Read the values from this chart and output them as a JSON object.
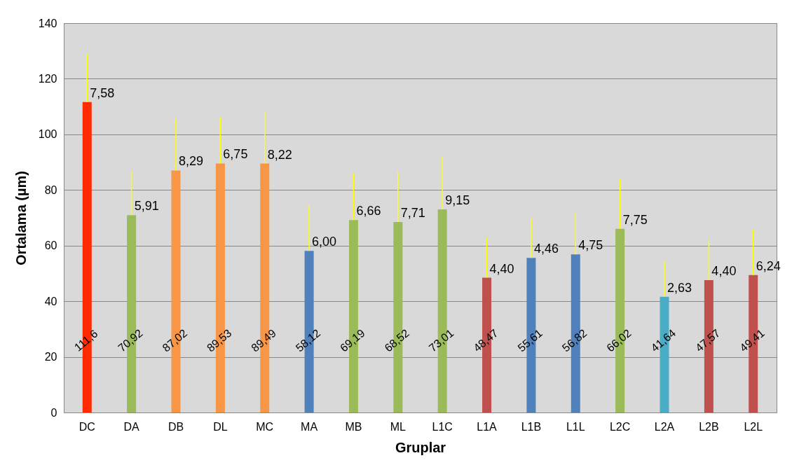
{
  "chart_data": {
    "type": "bar",
    "xlabel": "Gruplar",
    "ylabel": "Ortalama (µm)",
    "categories": [
      "DC",
      "DA",
      "DB",
      "DL",
      "MC",
      "MA",
      "MB",
      "ML",
      "L1C",
      "L1A",
      "L1B",
      "L1L",
      "L2C",
      "L2A",
      "L2B",
      "L2L"
    ],
    "values": [
      111.6,
      70.92,
      87.02,
      89.53,
      89.49,
      58.12,
      69.19,
      68.52,
      73.01,
      48.47,
      55.61,
      56.82,
      66.02,
      41.64,
      47.57,
      49.41
    ],
    "colors": [
      "#ff2a00",
      "#9bbb59",
      "#f79646",
      "#f79646",
      "#f79646",
      "#4f81bd",
      "#9bbb59",
      "#9bbb59",
      "#9bbb59",
      "#c0504d",
      "#4f81bd",
      "#4f81bd",
      "#9bbb59",
      "#4bacc6",
      "#c0504d",
      "#c0504d"
    ],
    "value_labels": [
      "111,6",
      "70,92",
      "87,02",
      "89,53",
      "89,49",
      "58,12",
      "69,19",
      "68,52",
      "73,01",
      "48,47",
      "55,61",
      "56,82",
      "66,02",
      "41,64",
      "47,57",
      "49,41"
    ],
    "errors": [
      [
        111.6,
        129
      ],
      [
        70.92,
        87
      ],
      [
        87.02,
        105.5
      ],
      [
        89.53,
        106
      ],
      [
        89.49,
        108
      ],
      [
        58.12,
        74.5
      ],
      [
        69.19,
        86
      ],
      [
        68.52,
        86.5
      ],
      [
        73.01,
        92
      ],
      [
        48.47,
        63
      ],
      [
        55.61,
        70
      ],
      [
        56.82,
        72
      ],
      [
        66.02,
        84
      ],
      [
        41.64,
        54.5
      ],
      [
        47.57,
        62
      ],
      [
        49.41,
        66
      ]
    ],
    "annotations": [
      {
        "text": "7,58",
        "x": "DC",
        "y": 111.6
      },
      {
        "text": "5,91",
        "x": "DA",
        "y": 70.92
      },
      {
        "text": "8,29",
        "x": "DB",
        "y": 87.02
      },
      {
        "text": "6,75",
        "x": "DL",
        "y": 89.53
      },
      {
        "text": "8,22",
        "x": "MC",
        "y": 89.49
      },
      {
        "text": "6,00",
        "x": "MA",
        "y": 58.12
      },
      {
        "text": "6,66",
        "x": "MB",
        "y": 69.19
      },
      {
        "text": "7,71",
        "x": "ML",
        "y": 68.52
      },
      {
        "text": "9,15",
        "x": "L1C",
        "y": 73.01
      },
      {
        "text": "4,40",
        "x": "L1A",
        "y": 48.47
      },
      {
        "text": "4,46",
        "x": "L1B",
        "y": 55.61
      },
      {
        "text": "4,75",
        "x": "L1L",
        "y": 56.82
      },
      {
        "text": "7,75",
        "x": "L2C",
        "y": 66.02
      },
      {
        "text": "2,63",
        "x": "L2A",
        "y": 41.64
      },
      {
        "text": "4,40",
        "x": "L2B",
        "y": 47.57
      },
      {
        "text": "6,24",
        "x": "L2L",
        "y": 49.41
      }
    ],
    "ylim": [
      0,
      140
    ],
    "yticks": [
      0,
      20,
      40,
      60,
      80,
      100,
      120,
      140
    ],
    "grid": "y"
  }
}
